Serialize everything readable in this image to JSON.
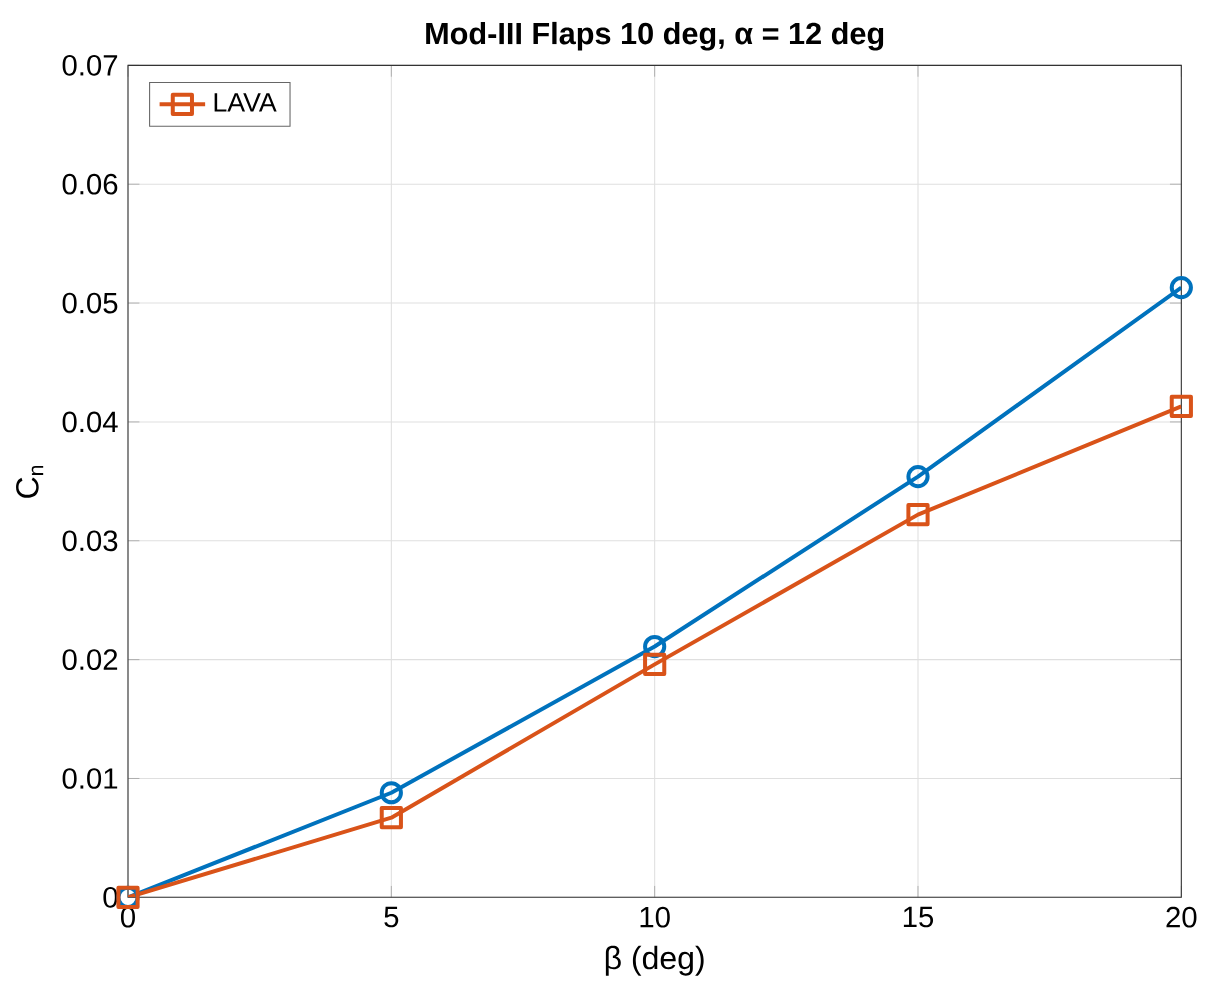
{
  "chart_data": {
    "type": "line",
    "title": "Mod-III Flaps 10 deg, α = 12 deg",
    "xlabel": "β (deg)",
    "ylabel": "C$_{n}$",
    "x": [
      0,
      5,
      10,
      15,
      20
    ],
    "series": [
      {
        "color": "#0072bd",
        "marker": "circle",
        "values": [
          0,
          0.0088,
          0.0211,
          0.0354,
          0.0513
        ]
      },
      {
        "name": "LAVA",
        "color": "#d95319",
        "marker": "square",
        "values": [
          0,
          0.0067,
          0.0196,
          0.0322,
          0.0413
        ]
      }
    ],
    "xlim": [
      0,
      20
    ],
    "xticks": [
      0,
      5,
      10,
      15,
      20
    ],
    "ylim": [
      0,
      0.07
    ],
    "yticks": [
      0,
      0.01,
      0.02,
      0.03,
      0.04,
      0.05,
      0.06,
      0.07
    ],
    "grid": true,
    "legend": "top left",
    "line_style": "solid"
  }
}
